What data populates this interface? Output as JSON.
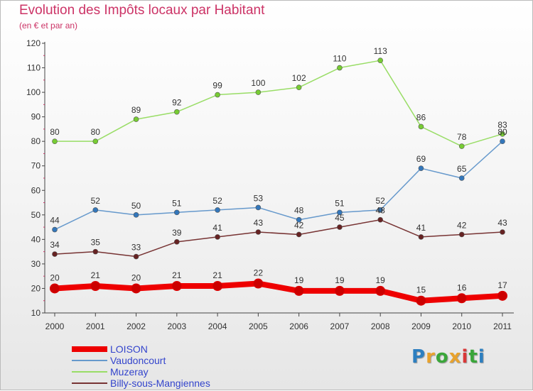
{
  "header": {
    "title": "Evolution des Impôts locaux par Habitant",
    "subtitle": "(en € et par an)"
  },
  "logo": {
    "text": "Proxiti",
    "letters": [
      "P",
      "r",
      "o",
      "x",
      "i",
      "t",
      "i"
    ],
    "colors": [
      "#2d7fc0",
      "#e8a22d",
      "#3aa63a",
      "#e8a22d",
      "#d93838",
      "#3aa63a",
      "#2d7fc0"
    ]
  },
  "chart_data": {
    "type": "line",
    "title": "Evolution des Impôts locaux par Habitant",
    "subtitle": "(en € et par an)",
    "xlabel": "",
    "ylabel": "",
    "ylim": [
      10,
      120
    ],
    "yticks": [
      10,
      20,
      30,
      40,
      50,
      60,
      70,
      80,
      90,
      100,
      110,
      120
    ],
    "grid": false,
    "legend_position": "bottom-left",
    "categories": [
      "2000",
      "2001",
      "2002",
      "2003",
      "2004",
      "2005",
      "2006",
      "2007",
      "2008",
      "2009",
      "2010",
      "2011"
    ],
    "series": [
      {
        "name": "LOISON",
        "color": "#ee0000",
        "marker": "#cc0000",
        "width": 8,
        "values": [
          20,
          21,
          20,
          21,
          21,
          22,
          19,
          19,
          19,
          15,
          16,
          17
        ]
      },
      {
        "name": "Vaudoncourt",
        "color": "#6699cc",
        "marker": "#3377bb",
        "width": 1.5,
        "values": [
          44,
          52,
          50,
          51,
          52,
          53,
          48,
          51,
          52,
          69,
          65,
          80
        ]
      },
      {
        "name": "Muzeray",
        "color": "#99dd66",
        "marker": "#77cc33",
        "width": 1.5,
        "values": [
          80,
          80,
          89,
          92,
          99,
          100,
          102,
          110,
          113,
          86,
          78,
          83
        ]
      },
      {
        "name": "Billy-sous-Mangiennes",
        "color": "#773333",
        "marker": "#662222",
        "width": 1.5,
        "values": [
          34,
          35,
          33,
          39,
          41,
          43,
          42,
          45,
          48,
          41,
          42,
          43
        ]
      }
    ]
  }
}
